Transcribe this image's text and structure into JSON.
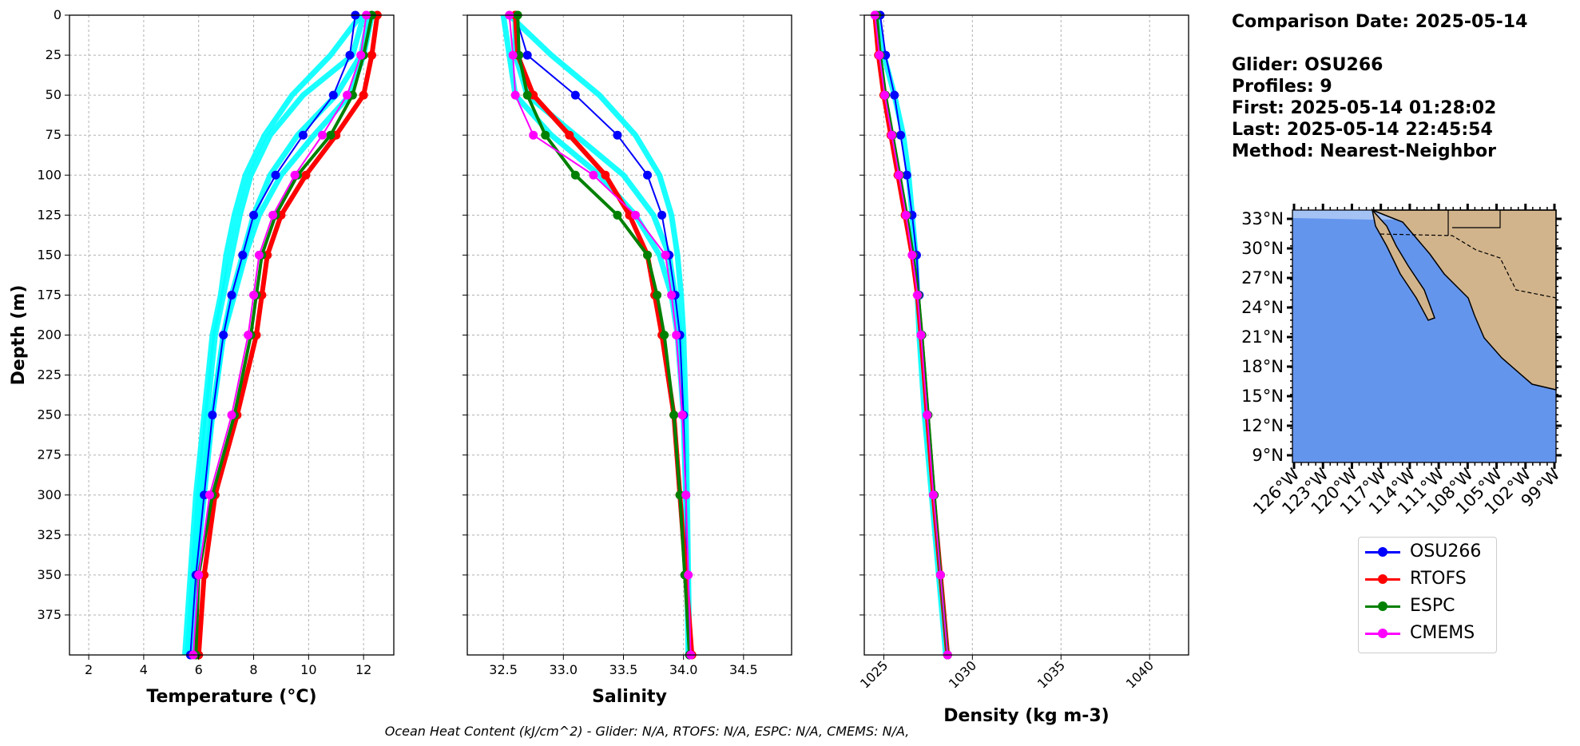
{
  "info": {
    "comparison_date": "Comparison Date: 2025-05-14",
    "glider": "Glider: OSU266",
    "profiles": "Profiles: 9",
    "first": "First: 2025-05-14 01:28:02",
    "last": "Last: 2025-05-14 22:45:54",
    "method": "Method: Nearest-Neighbor"
  },
  "footer": "Ocean Heat Content (kJ/cm^2) - Glider: N/A,  RTOFS: N/A,  ESPC: N/A,  CMEMS: N/A,",
  "legend": [
    {
      "name": "OSU266",
      "color": "#0000ff"
    },
    {
      "name": "RTOFS",
      "color": "#ff0000"
    },
    {
      "name": "ESPC",
      "color": "#008000"
    },
    {
      "name": "CMEMS",
      "color": "#ff00ff"
    }
  ],
  "colors": {
    "glider_raw": "#00ffff",
    "ocean": "#6495ed",
    "shelf": "#a4c2f4",
    "land": "#d2b48c"
  },
  "chart_data": [
    {
      "type": "line",
      "xlabel": "Temperature (°C)",
      "ylabel": "Depth (m)",
      "xlim": [
        1.3,
        13.1
      ],
      "ylim": [
        400,
        0
      ],
      "xticks": [
        "2",
        "4",
        "6",
        "8",
        "10",
        "12"
      ],
      "yticks": [
        "0",
        "25",
        "50",
        "75",
        "100",
        "125",
        "150",
        "175",
        "200",
        "225",
        "250",
        "275",
        "300",
        "325",
        "350",
        "375"
      ],
      "depth": [
        0,
        25,
        50,
        75,
        100,
        125,
        150,
        175,
        200,
        250,
        300,
        350,
        400
      ],
      "raw_profiles": [
        [
          12.0,
          11.6,
          9.8,
          8.6,
          7.9,
          7.5,
          7.2,
          6.9,
          6.6,
          6.3,
          6.0,
          5.8,
          5.6
        ],
        [
          12.2,
          11.9,
          11.0,
          9.6,
          8.6,
          8.0,
          7.6,
          7.2,
          6.9,
          6.5,
          6.1,
          5.9,
          5.7
        ],
        [
          11.9,
          10.8,
          9.4,
          8.4,
          7.7,
          7.3,
          7.0,
          6.8,
          6.5,
          6.2,
          5.9,
          5.7,
          5.5
        ],
        [
          12.3,
          12.0,
          11.5,
          10.2,
          9.0,
          8.2,
          7.7,
          7.3,
          6.9,
          6.5,
          6.2,
          5.9,
          5.7
        ]
      ],
      "series": [
        {
          "name": "OSU266",
          "values": [
            11.7,
            11.5,
            10.9,
            9.8,
            8.8,
            8.0,
            7.6,
            7.2,
            6.9,
            6.5,
            6.2,
            5.9,
            5.7
          ]
        },
        {
          "name": "RTOFS",
          "values": [
            12.5,
            12.3,
            12.0,
            11.0,
            9.9,
            9.0,
            8.5,
            8.3,
            8.1,
            7.4,
            6.6,
            6.2,
            6.0
          ]
        },
        {
          "name": "ESPC",
          "values": [
            12.3,
            12.0,
            11.6,
            10.8,
            9.6,
            8.8,
            8.3,
            8.1,
            7.9,
            7.3,
            6.5,
            6.0,
            5.9
          ]
        },
        {
          "name": "CMEMS",
          "values": [
            12.1,
            11.9,
            11.4,
            10.5,
            9.5,
            8.7,
            8.2,
            8.0,
            7.8,
            7.2,
            6.4,
            6.0,
            5.8
          ]
        }
      ]
    },
    {
      "type": "line",
      "xlabel": "Salinity",
      "xlim": [
        32.2,
        34.9
      ],
      "ylim": [
        400,
        0
      ],
      "xticks": [
        "32.5",
        "33.0",
        "33.5",
        "34.0",
        "34.5"
      ],
      "depth": [
        0,
        25,
        50,
        75,
        100,
        125,
        150,
        175,
        200,
        250,
        300,
        350,
        400
      ],
      "raw_profiles": [
        [
          32.55,
          32.9,
          33.3,
          33.6,
          33.8,
          33.9,
          33.95,
          33.98,
          34.0,
          34.02,
          34.03,
          34.04,
          34.05
        ],
        [
          32.5,
          32.55,
          32.6,
          32.9,
          33.3,
          33.6,
          33.8,
          33.9,
          33.95,
          34.0,
          34.02,
          34.03,
          34.04
        ],
        [
          32.6,
          32.6,
          32.7,
          33.1,
          33.5,
          33.75,
          33.88,
          33.93,
          33.97,
          34.0,
          34.02,
          34.03,
          34.05
        ]
      ],
      "series": [
        {
          "name": "OSU266",
          "values": [
            32.6,
            32.7,
            33.1,
            33.45,
            33.7,
            33.82,
            33.88,
            33.93,
            33.97,
            34.0,
            34.02,
            34.03,
            34.05
          ]
        },
        {
          "name": "RTOFS",
          "values": [
            32.6,
            32.62,
            32.75,
            33.05,
            33.35,
            33.55,
            33.7,
            33.76,
            33.82,
            33.92,
            33.97,
            34.02,
            34.07
          ]
        },
        {
          "name": "ESPC",
          "values": [
            32.62,
            32.63,
            32.7,
            32.85,
            33.1,
            33.45,
            33.7,
            33.78,
            33.84,
            33.92,
            33.97,
            34.01,
            34.05
          ]
        },
        {
          "name": "CMEMS",
          "values": [
            32.55,
            32.58,
            32.6,
            32.75,
            33.25,
            33.6,
            33.85,
            33.9,
            33.94,
            33.99,
            34.02,
            34.04,
            34.06
          ]
        }
      ]
    },
    {
      "type": "line",
      "xlabel": "Density (kg m-3)",
      "xlim": [
        1023.9,
        1042.2
      ],
      "ylim": [
        400,
        0
      ],
      "xticks": [
        "1025",
        "1030",
        "1035",
        "1040"
      ],
      "depth": [
        0,
        25,
        50,
        75,
        100,
        125,
        150,
        175,
        200,
        250,
        300,
        350,
        400
      ],
      "raw_profiles": [
        [
          1024.6,
          1025.0,
          1025.6,
          1026.1,
          1026.4,
          1026.6,
          1026.8,
          1026.9,
          1027.0,
          1027.3,
          1027.7,
          1028.1,
          1028.5
        ]
      ],
      "series": [
        {
          "name": "OSU266",
          "values": [
            1024.8,
            1025.1,
            1025.6,
            1025.95,
            1026.3,
            1026.6,
            1026.85,
            1027.0,
            1027.15,
            1027.45,
            1027.8,
            1028.2,
            1028.6
          ]
        },
        {
          "name": "RTOFS",
          "values": [
            1024.5,
            1024.7,
            1025.0,
            1025.4,
            1025.8,
            1026.2,
            1026.6,
            1026.9,
            1027.1,
            1027.45,
            1027.8,
            1028.2,
            1028.6
          ]
        },
        {
          "name": "ESPC",
          "values": [
            1024.6,
            1024.8,
            1025.1,
            1025.5,
            1025.9,
            1026.3,
            1026.65,
            1026.95,
            1027.15,
            1027.5,
            1027.85,
            1028.2,
            1028.6
          ]
        },
        {
          "name": "CMEMS",
          "values": [
            1024.5,
            1024.75,
            1025.05,
            1025.45,
            1025.85,
            1026.25,
            1026.6,
            1026.9,
            1027.1,
            1027.45,
            1027.8,
            1028.2,
            1028.6
          ]
        }
      ]
    }
  ],
  "map": {
    "lat_ticks": [
      "33°N",
      "30°N",
      "27°N",
      "24°N",
      "21°N",
      "18°N",
      "15°N",
      "12°N",
      "9°N"
    ],
    "lon_ticks": [
      "126°W",
      "123°W",
      "120°W",
      "117°W",
      "114°W",
      "111°W",
      "108°W",
      "105°W",
      "102°W",
      "99°W"
    ]
  }
}
